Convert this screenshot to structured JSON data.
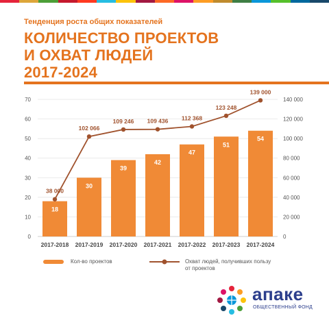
{
  "header": {
    "subtitle": "Тенденция роста общих показателей",
    "title_lines": [
      "КОЛИЧЕСТВО ПРОЕКТОВ",
      "И ОХВАТ ЛЮДЕЙ",
      "2017-2024"
    ]
  },
  "colors": {
    "accent": "#e4731e",
    "bar": "#f08a36",
    "line": "#a0522d",
    "brand": "#2c3e8c"
  },
  "chart_data": {
    "type": "bar",
    "categories": [
      "2017-2018",
      "2017-2019",
      "2017-2020",
      "2017-2021",
      "2017-2022",
      "2017-2023",
      "2017-2024"
    ],
    "series": [
      {
        "name": "Кол-во проектов",
        "type": "bar",
        "axis": "left",
        "values": [
          18,
          30,
          39,
          42,
          47,
          51,
          54
        ]
      },
      {
        "name": "Охват людей, получивших пользу от проектов",
        "type": "line",
        "axis": "right",
        "values": [
          38000,
          102066,
          109246,
          109436,
          112368,
          123248,
          139000
        ]
      }
    ],
    "data_labels_line": [
      "38 000",
      "102 066",
      "109 246",
      "109 436",
      "112 368",
      "123 248",
      "139 000"
    ],
    "y_left": {
      "ticks": [
        0,
        10,
        20,
        30,
        40,
        50,
        60,
        70
      ],
      "lim": [
        0,
        70
      ]
    },
    "y_right": {
      "ticks": [
        "0",
        "20 000",
        "40 000",
        "60 000",
        "80 000",
        "100 000",
        "120 000",
        "140 000"
      ],
      "lim": [
        0,
        140000
      ]
    },
    "grid": true,
    "legend": "bottom"
  },
  "legend": {
    "bar_label": "Кол-во проектов",
    "line_label_1": "Охват людей, получивших пользу",
    "line_label_2": "от проектов"
  },
  "footer": {
    "brand": "апаке",
    "brand_sub": "ОБЩЕСТВЕННЫЙ ФОНД"
  }
}
